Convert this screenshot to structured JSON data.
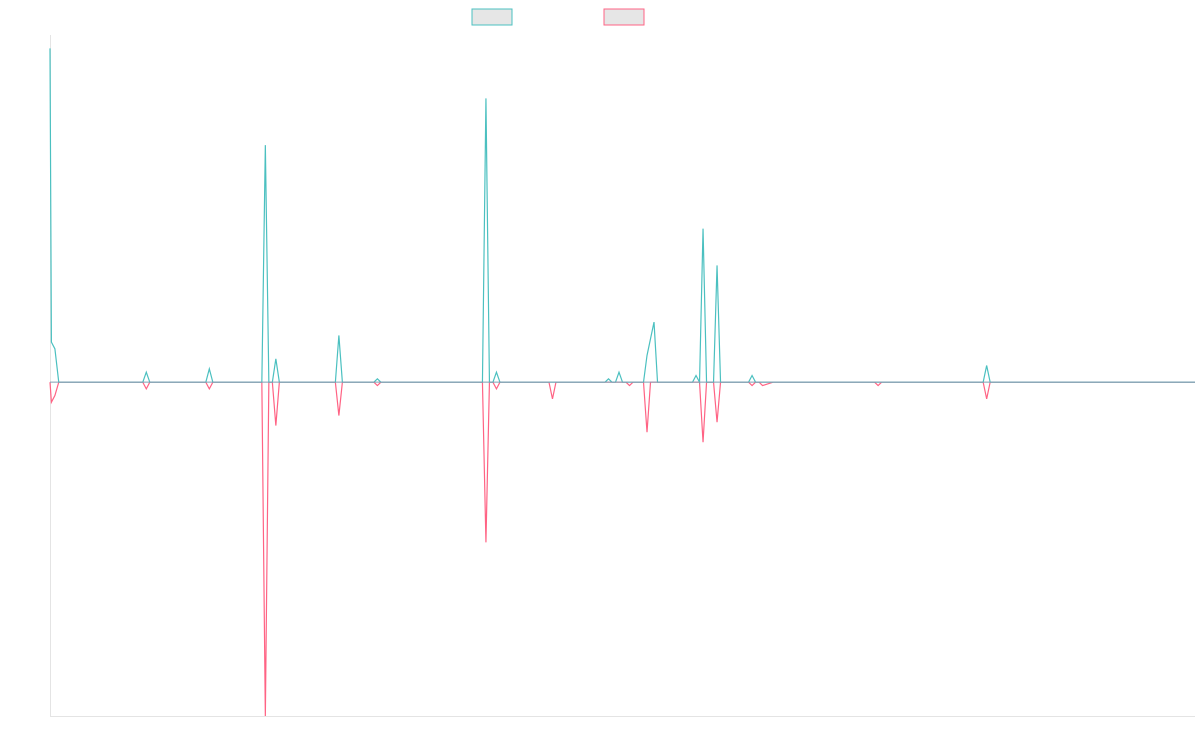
{
  "colors": {
    "series_up": "#4bc0c0",
    "series_down": "#ff6384",
    "legend_fill": "#e6e6e6",
    "axis": "#e4e4e4",
    "baseline": "#7f9fb3"
  },
  "chart_data": {
    "type": "line",
    "title": "",
    "xlabel": "",
    "ylabel": "",
    "legend_position": "top-center",
    "grid": false,
    "ylim": [
      -1,
      1.04
    ],
    "series": [
      {
        "values": [
          [
            0,
            1.0
          ],
          [
            0.4,
            0.12
          ],
          [
            1.4,
            0.1
          ],
          [
            2.5,
            0
          ],
          [
            7.5,
            0
          ],
          [
            8.5,
            0
          ],
          [
            9.5,
            0
          ],
          [
            10.5,
            0
          ],
          [
            26.5,
            0
          ],
          [
            27.5,
            0.03
          ],
          [
            28.5,
            0
          ],
          [
            31.5,
            0
          ],
          [
            32.5,
            0
          ],
          [
            33.5,
            0
          ],
          [
            44.5,
            0
          ],
          [
            45.5,
            0.04
          ],
          [
            46.5,
            0
          ],
          [
            55.5,
            0
          ],
          [
            56.5,
            0
          ],
          [
            57.5,
            0
          ],
          [
            60.5,
            0
          ],
          [
            61.5,
            0.71
          ],
          [
            62.5,
            0
          ],
          [
            63.5,
            0
          ],
          [
            64.5,
            0.07
          ],
          [
            65.5,
            0
          ],
          [
            71.5,
            0
          ],
          [
            72.5,
            0
          ],
          [
            76.5,
            0
          ],
          [
            77.5,
            0
          ],
          [
            81.5,
            0
          ],
          [
            82.5,
            0.14
          ],
          [
            83.5,
            0
          ],
          [
            92.5,
            0
          ],
          [
            93.5,
            0.01
          ],
          [
            94.5,
            0
          ],
          [
            123.5,
            0
          ],
          [
            124.5,
            0.85
          ],
          [
            125.5,
            0
          ],
          [
            126.5,
            0
          ],
          [
            127.5,
            0.03
          ],
          [
            128.5,
            0
          ],
          [
            142.5,
            0
          ],
          [
            143.5,
            0
          ],
          [
            144.5,
            0
          ],
          [
            158.5,
            0
          ],
          [
            159.5,
            0.01
          ],
          [
            160.5,
            0
          ],
          [
            161.5,
            0
          ],
          [
            162.5,
            0.03
          ],
          [
            163.5,
            0
          ],
          [
            164.5,
            0
          ],
          [
            165.5,
            0
          ],
          [
            166.5,
            0
          ],
          [
            169.5,
            0
          ],
          [
            170.5,
            0.08
          ],
          [
            171.5,
            0.13
          ],
          [
            172.5,
            0.18
          ],
          [
            173.5,
            0
          ],
          [
            177.5,
            0
          ],
          [
            178.5,
            0
          ],
          [
            179.5,
            0
          ],
          [
            183.5,
            0
          ],
          [
            184.5,
            0.02
          ],
          [
            185.5,
            0
          ],
          [
            186.5,
            0.46
          ],
          [
            187.5,
            0
          ],
          [
            188.5,
            0
          ],
          [
            189.5,
            0
          ],
          [
            190.5,
            0.35
          ],
          [
            191.5,
            0
          ],
          [
            194.5,
            0
          ],
          [
            195.5,
            0
          ],
          [
            196.5,
            0
          ],
          [
            199.5,
            0
          ],
          [
            200.5,
            0.02
          ],
          [
            201.5,
            0
          ],
          [
            202.5,
            0
          ],
          [
            203.5,
            0
          ],
          [
            206.5,
            0
          ],
          [
            212.5,
            0
          ],
          [
            213.5,
            0
          ],
          [
            214.5,
            0
          ],
          [
            235.5,
            0
          ],
          [
            236.5,
            0
          ],
          [
            237.5,
            0
          ],
          [
            266.5,
            0
          ],
          [
            267.5,
            0.05
          ],
          [
            268.5,
            0
          ],
          [
            327,
            0
          ]
        ]
      },
      {
        "values": [
          [
            0,
            0
          ],
          [
            0.4,
            -0.06
          ],
          [
            1.4,
            -0.04
          ],
          [
            2.5,
            0
          ],
          [
            7.5,
            0
          ],
          [
            8.5,
            0
          ],
          [
            9.5,
            0
          ],
          [
            10.5,
            0
          ],
          [
            26.5,
            0
          ],
          [
            27.5,
            -0.02
          ],
          [
            28.5,
            0
          ],
          [
            31.5,
            0
          ],
          [
            32.5,
            0
          ],
          [
            33.5,
            0
          ],
          [
            44.5,
            0
          ],
          [
            45.5,
            -0.02
          ],
          [
            46.5,
            0
          ],
          [
            55.5,
            0
          ],
          [
            56.5,
            0
          ],
          [
            57.5,
            0
          ],
          [
            60.5,
            0
          ],
          [
            61.5,
            -1.0
          ],
          [
            62.5,
            0
          ],
          [
            63.5,
            0
          ],
          [
            64.5,
            -0.13
          ],
          [
            65.5,
            0
          ],
          [
            71.5,
            0
          ],
          [
            72.5,
            0
          ],
          [
            76.5,
            0
          ],
          [
            77.5,
            0
          ],
          [
            81.5,
            0
          ],
          [
            82.5,
            -0.1
          ],
          [
            83.5,
            0
          ],
          [
            92.5,
            0
          ],
          [
            93.5,
            -0.01
          ],
          [
            94.5,
            0
          ],
          [
            123.5,
            0
          ],
          [
            124.5,
            -0.48
          ],
          [
            125.5,
            0
          ],
          [
            126.5,
            0
          ],
          [
            127.5,
            -0.02
          ],
          [
            128.5,
            0
          ],
          [
            142.5,
            0
          ],
          [
            143.5,
            -0.05
          ],
          [
            144.5,
            0
          ],
          [
            158.5,
            0
          ],
          [
            159.5,
            0
          ],
          [
            160.5,
            0
          ],
          [
            161.5,
            0
          ],
          [
            162.5,
            0
          ],
          [
            163.5,
            0
          ],
          [
            164.5,
            0
          ],
          [
            165.5,
            -0.01
          ],
          [
            166.5,
            0
          ],
          [
            169.5,
            0
          ],
          [
            170.5,
            -0.15
          ],
          [
            171.5,
            0
          ],
          [
            172.5,
            0
          ],
          [
            173.5,
            0
          ],
          [
            177.5,
            0
          ],
          [
            178.5,
            0
          ],
          [
            179.5,
            0
          ],
          [
            183.5,
            0
          ],
          [
            184.5,
            0
          ],
          [
            185.5,
            0
          ],
          [
            186.5,
            -0.18
          ],
          [
            187.5,
            0
          ],
          [
            188.5,
            0
          ],
          [
            189.5,
            0
          ],
          [
            190.5,
            -0.12
          ],
          [
            191.5,
            0
          ],
          [
            194.5,
            0
          ],
          [
            195.5,
            0
          ],
          [
            196.5,
            0
          ],
          [
            199.5,
            0
          ],
          [
            200.5,
            -0.01
          ],
          [
            201.5,
            0
          ],
          [
            202.5,
            0
          ],
          [
            203.5,
            -0.01
          ],
          [
            206.5,
            0
          ],
          [
            212.5,
            0
          ],
          [
            213.5,
            0
          ],
          [
            214.5,
            0
          ],
          [
            235.5,
            0
          ],
          [
            236.5,
            -0.01
          ],
          [
            237.5,
            0
          ],
          [
            266.5,
            0
          ],
          [
            267.5,
            -0.05
          ],
          [
            268.5,
            0
          ],
          [
            327,
            0
          ]
        ]
      }
    ]
  }
}
